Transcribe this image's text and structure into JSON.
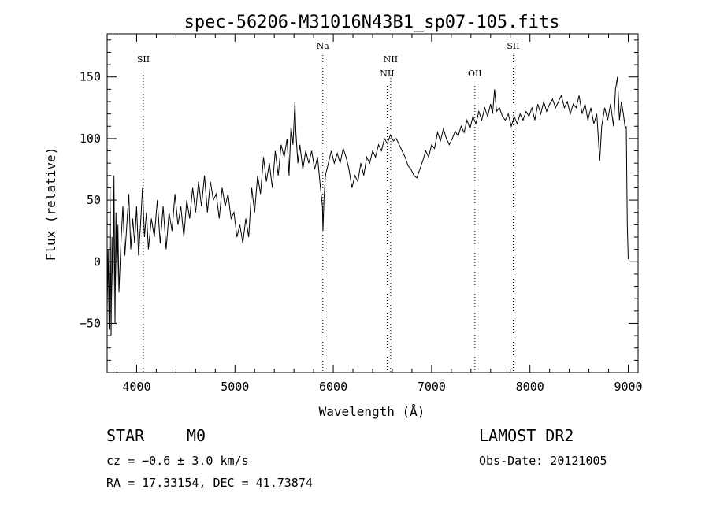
{
  "chart_data": {
    "type": "line",
    "title": "spec-56206-M31016N43B1_sp07-105.fits",
    "xlabel": "Wavelength (Å)",
    "ylabel": "Flux (relative)",
    "xlim": [
      3700,
      9100
    ],
    "ylim": [
      -90,
      185
    ],
    "xticks": [
      4000,
      5000,
      6000,
      7000,
      8000,
      9000
    ],
    "yticks": [
      -50,
      0,
      50,
      100,
      150
    ],
    "grid": false,
    "lines": [
      {
        "label": "SII",
        "x": 4068,
        "row": 1
      },
      {
        "label": "Na",
        "x": 5893,
        "row": 0
      },
      {
        "label": "NII",
        "x": 6548,
        "row": 2
      },
      {
        "label": "NII",
        "x": 6584,
        "row": 1
      },
      {
        "label": "OII",
        "x": 7440,
        "row": 2
      },
      {
        "label": "SII",
        "x": 7830,
        "row": 0
      }
    ],
    "series": [
      {
        "points": [
          [
            3700,
            -40
          ],
          [
            3710,
            10
          ],
          [
            3720,
            -55
          ],
          [
            3730,
            60
          ],
          [
            3740,
            -60
          ],
          [
            3750,
            20
          ],
          [
            3760,
            -35
          ],
          [
            3770,
            70
          ],
          [
            3780,
            -50
          ],
          [
            3790,
            40
          ],
          [
            3800,
            -20
          ],
          [
            3810,
            30
          ],
          [
            3820,
            -25
          ],
          [
            3840,
            15
          ],
          [
            3860,
            45
          ],
          [
            3880,
            5
          ],
          [
            3900,
            30
          ],
          [
            3920,
            55
          ],
          [
            3940,
            10
          ],
          [
            3960,
            35
          ],
          [
            3980,
            15
          ],
          [
            4000,
            45
          ],
          [
            4020,
            5
          ],
          [
            4040,
            30
          ],
          [
            4060,
            60
          ],
          [
            4080,
            20
          ],
          [
            4100,
            40
          ],
          [
            4120,
            10
          ],
          [
            4150,
            35
          ],
          [
            4180,
            20
          ],
          [
            4210,
            50
          ],
          [
            4240,
            15
          ],
          [
            4270,
            45
          ],
          [
            4300,
            10
          ],
          [
            4330,
            40
          ],
          [
            4360,
            25
          ],
          [
            4390,
            55
          ],
          [
            4420,
            30
          ],
          [
            4450,
            45
          ],
          [
            4480,
            20
          ],
          [
            4510,
            50
          ],
          [
            4540,
            35
          ],
          [
            4570,
            60
          ],
          [
            4600,
            40
          ],
          [
            4630,
            65
          ],
          [
            4660,
            45
          ],
          [
            4690,
            70
          ],
          [
            4720,
            40
          ],
          [
            4750,
            65
          ],
          [
            4780,
            50
          ],
          [
            4810,
            55
          ],
          [
            4840,
            35
          ],
          [
            4870,
            60
          ],
          [
            4900,
            45
          ],
          [
            4930,
            55
          ],
          [
            4960,
            35
          ],
          [
            4990,
            40
          ],
          [
            5020,
            20
          ],
          [
            5050,
            30
          ],
          [
            5080,
            15
          ],
          [
            5110,
            35
          ],
          [
            5140,
            20
          ],
          [
            5170,
            60
          ],
          [
            5200,
            40
          ],
          [
            5230,
            70
          ],
          [
            5260,
            55
          ],
          [
            5290,
            85
          ],
          [
            5320,
            65
          ],
          [
            5350,
            80
          ],
          [
            5380,
            60
          ],
          [
            5410,
            90
          ],
          [
            5440,
            70
          ],
          [
            5470,
            95
          ],
          [
            5500,
            85
          ],
          [
            5530,
            100
          ],
          [
            5550,
            70
          ],
          [
            5570,
            110
          ],
          [
            5590,
            95
          ],
          [
            5610,
            130
          ],
          [
            5620,
            105
          ],
          [
            5640,
            80
          ],
          [
            5660,
            95
          ],
          [
            5690,
            75
          ],
          [
            5720,
            90
          ],
          [
            5750,
            80
          ],
          [
            5780,
            90
          ],
          [
            5810,
            75
          ],
          [
            5840,
            85
          ],
          [
            5870,
            60
          ],
          [
            5890,
            45
          ],
          [
            5895,
            25
          ],
          [
            5905,
            50
          ],
          [
            5920,
            70
          ],
          [
            5950,
            80
          ],
          [
            5980,
            90
          ],
          [
            6010,
            80
          ],
          [
            6040,
            88
          ],
          [
            6070,
            80
          ],
          [
            6100,
            92
          ],
          [
            6130,
            85
          ],
          [
            6160,
            75
          ],
          [
            6190,
            60
          ],
          [
            6220,
            70
          ],
          [
            6250,
            65
          ],
          [
            6280,
            80
          ],
          [
            6310,
            70
          ],
          [
            6340,
            85
          ],
          [
            6370,
            80
          ],
          [
            6400,
            90
          ],
          [
            6430,
            85
          ],
          [
            6460,
            95
          ],
          [
            6490,
            90
          ],
          [
            6520,
            100
          ],
          [
            6550,
            96
          ],
          [
            6580,
            103
          ],
          [
            6610,
            98
          ],
          [
            6640,
            100
          ],
          [
            6670,
            95
          ],
          [
            6700,
            90
          ],
          [
            6730,
            85
          ],
          [
            6760,
            78
          ],
          [
            6790,
            75
          ],
          [
            6820,
            70
          ],
          [
            6850,
            68
          ],
          [
            6880,
            75
          ],
          [
            6910,
            82
          ],
          [
            6940,
            90
          ],
          [
            6970,
            85
          ],
          [
            7000,
            95
          ],
          [
            7030,
            92
          ],
          [
            7060,
            105
          ],
          [
            7090,
            98
          ],
          [
            7120,
            108
          ],
          [
            7150,
            100
          ],
          [
            7180,
            95
          ],
          [
            7210,
            100
          ],
          [
            7240,
            106
          ],
          [
            7270,
            102
          ],
          [
            7300,
            110
          ],
          [
            7330,
            105
          ],
          [
            7360,
            115
          ],
          [
            7390,
            108
          ],
          [
            7420,
            118
          ],
          [
            7450,
            112
          ],
          [
            7480,
            122
          ],
          [
            7510,
            115
          ],
          [
            7540,
            125
          ],
          [
            7570,
            118
          ],
          [
            7600,
            128
          ],
          [
            7620,
            120
          ],
          [
            7640,
            140
          ],
          [
            7660,
            122
          ],
          [
            7690,
            125
          ],
          [
            7720,
            118
          ],
          [
            7750,
            115
          ],
          [
            7780,
            120
          ],
          [
            7810,
            110
          ],
          [
            7840,
            118
          ],
          [
            7870,
            112
          ],
          [
            7900,
            120
          ],
          [
            7930,
            115
          ],
          [
            7960,
            122
          ],
          [
            7990,
            118
          ],
          [
            8020,
            125
          ],
          [
            8050,
            115
          ],
          [
            8080,
            128
          ],
          [
            8110,
            120
          ],
          [
            8140,
            130
          ],
          [
            8170,
            122
          ],
          [
            8200,
            128
          ],
          [
            8230,
            132
          ],
          [
            8260,
            125
          ],
          [
            8290,
            130
          ],
          [
            8320,
            135
          ],
          [
            8350,
            125
          ],
          [
            8380,
            130
          ],
          [
            8410,
            120
          ],
          [
            8440,
            128
          ],
          [
            8470,
            125
          ],
          [
            8500,
            135
          ],
          [
            8530,
            120
          ],
          [
            8560,
            128
          ],
          [
            8590,
            115
          ],
          [
            8620,
            125
          ],
          [
            8650,
            112
          ],
          [
            8680,
            120
          ],
          [
            8710,
            82
          ],
          [
            8730,
            110
          ],
          [
            8760,
            125
          ],
          [
            8790,
            115
          ],
          [
            8820,
            128
          ],
          [
            8850,
            110
          ],
          [
            8870,
            140
          ],
          [
            8890,
            150
          ],
          [
            8910,
            115
          ],
          [
            8930,
            130
          ],
          [
            8950,
            120
          ],
          [
            8970,
            108
          ],
          [
            8980,
            110
          ],
          [
            8990,
            30
          ],
          [
            9000,
            2
          ]
        ]
      }
    ]
  },
  "info": {
    "class_label": "STAR",
    "subclass_label": "M0",
    "redshift_text": "cz = −0.6 ± 3.0 km/s",
    "coords_text": "RA =  17.33154, DEC =  41.73874",
    "survey_text": "LAMOST DR2",
    "obsdate_text": "Obs-Date: 20121005"
  }
}
